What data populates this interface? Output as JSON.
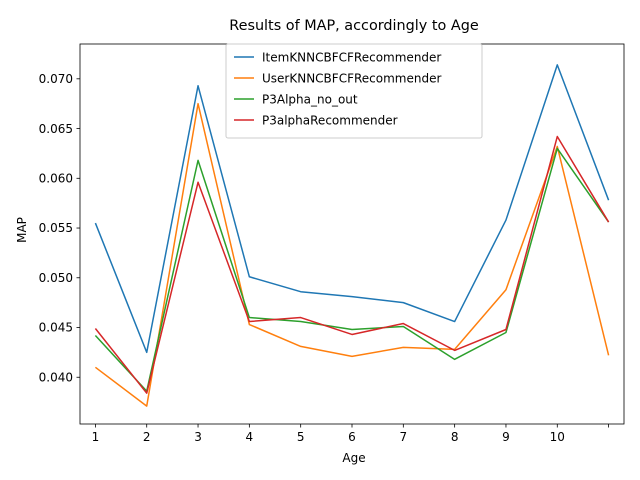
{
  "chart_data": {
    "type": "line",
    "title": "Results of MAP, accordingly to Age",
    "xlabel": "Age",
    "ylabel": "MAP",
    "x": [
      1,
      2,
      3,
      4,
      5,
      6,
      7,
      8,
      9,
      10,
      11
    ],
    "x_tick_labels": [
      "1",
      "2",
      "3",
      "4",
      "5",
      "6",
      "7",
      "8",
      "9",
      "10",
      ""
    ],
    "xlim": [
      0.7,
      11.3
    ],
    "ylim": [
      0.0353,
      0.0735
    ],
    "y_ticks": [
      0.04,
      0.045,
      0.05,
      0.055,
      0.06,
      0.065,
      0.07
    ],
    "y_tick_labels": [
      "0.040",
      "0.045",
      "0.050",
      "0.055",
      "0.060",
      "0.065",
      "0.070"
    ],
    "grid": false,
    "legend_position": "top-center",
    "series": [
      {
        "name": "ItemKNNCBFCFRecommender",
        "color": "#1f77b4",
        "values": [
          0.0555,
          0.0425,
          0.0693,
          0.0501,
          0.0486,
          0.0481,
          0.0475,
          0.0456,
          0.0558,
          0.0714,
          0.0578
        ]
      },
      {
        "name": "UserKNNCBFCFRecommender",
        "color": "#ff7f0e",
        "values": [
          0.041,
          0.0371,
          0.0675,
          0.0453,
          0.0431,
          0.0421,
          0.043,
          0.0428,
          0.0488,
          0.0632,
          0.0422
        ]
      },
      {
        "name": "P3Alpha_no_out",
        "color": "#2ca02c",
        "values": [
          0.0442,
          0.0386,
          0.0618,
          0.046,
          0.0456,
          0.0448,
          0.0451,
          0.0418,
          0.0445,
          0.063,
          0.0556
        ]
      },
      {
        "name": "P3alphaRecommender",
        "color": "#d62728",
        "values": [
          0.0449,
          0.0384,
          0.0596,
          0.0456,
          0.046,
          0.0443,
          0.0454,
          0.0427,
          0.0448,
          0.0642,
          0.0556
        ]
      }
    ]
  }
}
